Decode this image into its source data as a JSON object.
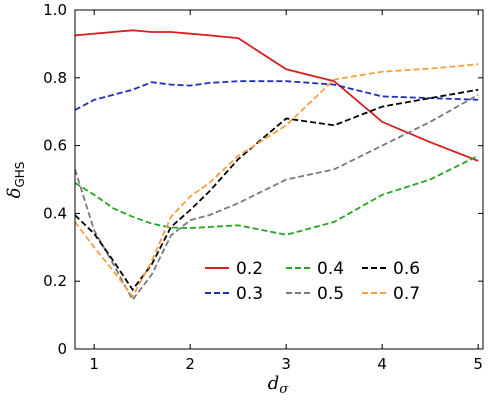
{
  "chart_data": {
    "type": "line",
    "xlabel": "d",
    "xlabel_sub": "σ",
    "ylabel": "δ",
    "ylabel_sub": "GHS",
    "xlim": [
      0.8,
      5.05
    ],
    "ylim": [
      0,
      1.0
    ],
    "xticks": [
      1,
      2,
      3,
      4,
      5
    ],
    "yticks": [
      0,
      0.2,
      0.4,
      0.6,
      0.8,
      1.0
    ],
    "ytick_labels": [
      "0",
      "0.2",
      "0.4",
      "0.6",
      "0.8",
      "1.0"
    ],
    "grid": false,
    "legend_position": "lower-right",
    "series": [
      {
        "name": "0.2",
        "color": "#d62020",
        "dash": "solid",
        "x": [
          0.8,
          1.0,
          1.2,
          1.4,
          1.6,
          1.8,
          2.0,
          2.2,
          2.5,
          3.0,
          3.5,
          4.0,
          4.5,
          5.0
        ],
        "y": [
          0.925,
          0.93,
          0.935,
          0.94,
          0.935,
          0.935,
          0.93,
          0.925,
          0.917,
          0.825,
          0.79,
          0.67,
          0.61,
          0.555
        ]
      },
      {
        "name": "0.3",
        "color": "#1f2fb8",
        "dash": "dashed",
        "x": [
          0.8,
          1.0,
          1.2,
          1.4,
          1.6,
          1.8,
          2.0,
          2.2,
          2.5,
          3.0,
          3.5,
          4.0,
          4.5,
          5.0
        ],
        "y": [
          0.705,
          0.735,
          0.75,
          0.765,
          0.787,
          0.78,
          0.777,
          0.785,
          0.79,
          0.79,
          0.78,
          0.745,
          0.74,
          0.735
        ]
      },
      {
        "name": "0.4",
        "color": "#22a822",
        "dash": "dashed",
        "x": [
          0.8,
          1.0,
          1.2,
          1.4,
          1.6,
          1.8,
          2.0,
          2.2,
          2.5,
          3.0,
          3.5,
          4.0,
          4.5,
          5.0
        ],
        "y": [
          0.49,
          0.455,
          0.415,
          0.39,
          0.37,
          0.358,
          0.357,
          0.36,
          0.365,
          0.337,
          0.375,
          0.455,
          0.5,
          0.57
        ]
      },
      {
        "name": "0.5",
        "color": "#7a7a7a",
        "dash": "dashed",
        "x": [
          0.8,
          1.0,
          1.2,
          1.4,
          1.6,
          1.8,
          2.0,
          2.2,
          2.5,
          3.0,
          3.5,
          4.0,
          4.5,
          5.0
        ],
        "y": [
          0.53,
          0.35,
          0.25,
          0.145,
          0.22,
          0.335,
          0.38,
          0.395,
          0.43,
          0.5,
          0.53,
          0.6,
          0.67,
          0.75
        ]
      },
      {
        "name": "0.6",
        "color": "#000000",
        "dash": "dashed",
        "x": [
          0.8,
          1.0,
          1.2,
          1.4,
          1.6,
          1.8,
          2.0,
          2.2,
          2.5,
          3.0,
          3.5,
          4.0,
          4.5,
          5.0
        ],
        "y": [
          0.395,
          0.34,
          0.26,
          0.175,
          0.25,
          0.36,
          0.41,
          0.465,
          0.56,
          0.68,
          0.66,
          0.715,
          0.74,
          0.765
        ]
      },
      {
        "name": "0.7",
        "color": "#f5a040",
        "dash": "dashed",
        "x": [
          0.8,
          1.0,
          1.2,
          1.4,
          1.6,
          1.8,
          2.0,
          2.2,
          2.5,
          3.0,
          3.5,
          4.0,
          4.5,
          5.0
        ],
        "y": [
          0.375,
          0.3,
          0.23,
          0.155,
          0.26,
          0.39,
          0.45,
          0.49,
          0.57,
          0.66,
          0.795,
          0.818,
          0.827,
          0.84
        ]
      }
    ]
  }
}
